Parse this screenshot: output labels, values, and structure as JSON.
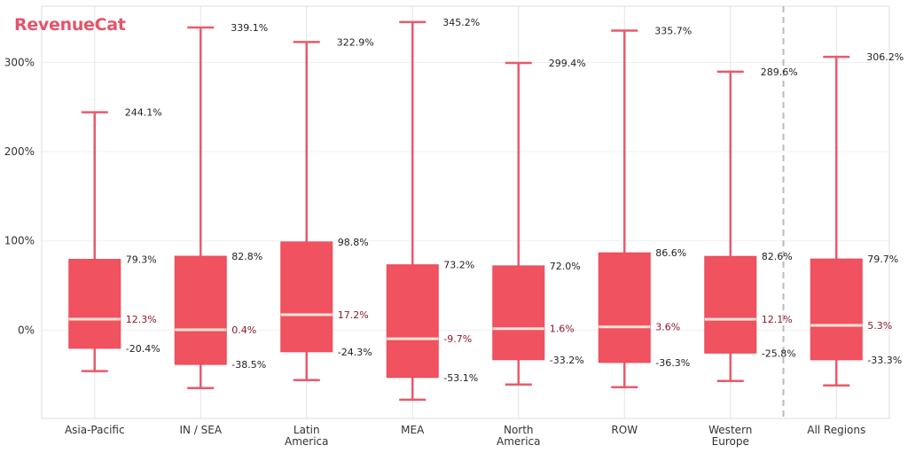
{
  "brand": {
    "logo_text": "RevenueCat",
    "logo_color": "#e5546a"
  },
  "colors": {
    "box_fill": "#f0525f",
    "whisker": "#e95a6c",
    "median_line": "#fbe6d8",
    "median_label": "#8b1a2b",
    "value_label": "#222222",
    "grid": "#efefef",
    "separator": "#bbbbbb"
  },
  "chart_data": {
    "type": "box",
    "title": "",
    "xlabel": "",
    "ylabel": "",
    "ylim": [
      -99,
      363
    ],
    "yticks": [
      0,
      100,
      200,
      300
    ],
    "ytick_labels": [
      "0%",
      "100%",
      "200%",
      "300%"
    ],
    "grid": true,
    "legend": "none",
    "separator_after_category": "Western Europe",
    "categories": [
      {
        "name": "Asia-Pacific",
        "label_lines": [
          "Asia-Pacific"
        ],
        "whisker_low": -46,
        "q1": -20.4,
        "median": 12.3,
        "q3": 79.3,
        "whisker_high": 244.1,
        "labels": {
          "whisker_high": "244.1%",
          "q3": "79.3%",
          "median": "12.3%",
          "q1": "-20.4%"
        }
      },
      {
        "name": "IN / SEA",
        "label_lines": [
          "IN / SEA"
        ],
        "whisker_low": -65,
        "q1": -38.5,
        "median": 0.4,
        "q3": 82.8,
        "whisker_high": 339.1,
        "labels": {
          "whisker_high": "339.1%",
          "q3": "82.8%",
          "median": "0.4%",
          "q1": "-38.5%"
        }
      },
      {
        "name": "Latin America",
        "label_lines": [
          "Latin",
          "America"
        ],
        "whisker_low": -56,
        "q1": -24.3,
        "median": 17.2,
        "q3": 98.8,
        "whisker_high": 322.9,
        "labels": {
          "whisker_high": "322.9%",
          "q3": "98.8%",
          "median": "17.2%",
          "q1": "-24.3%"
        }
      },
      {
        "name": "MEA",
        "label_lines": [
          "MEA"
        ],
        "whisker_low": -78,
        "q1": -53.1,
        "median": -9.7,
        "q3": 73.2,
        "whisker_high": 345.2,
        "labels": {
          "whisker_high": "345.2%",
          "q3": "73.2%",
          "median": "-9.7%",
          "q1": "-53.1%"
        }
      },
      {
        "name": "North America",
        "label_lines": [
          "North",
          "America"
        ],
        "whisker_low": -61,
        "q1": -33.2,
        "median": 1.6,
        "q3": 72.0,
        "whisker_high": 299.4,
        "labels": {
          "whisker_high": "299.4%",
          "q3": "72.0%",
          "median": "1.6%",
          "q1": "-33.2%"
        }
      },
      {
        "name": "ROW",
        "label_lines": [
          "ROW"
        ],
        "whisker_low": -64,
        "q1": -36.3,
        "median": 3.6,
        "q3": 86.6,
        "whisker_high": 335.7,
        "labels": {
          "whisker_high": "335.7%",
          "q3": "86.6%",
          "median": "3.6%",
          "q1": "-36.3%"
        }
      },
      {
        "name": "Western Europe",
        "label_lines": [
          "Western",
          "Europe"
        ],
        "whisker_low": -57,
        "q1": -25.8,
        "median": 12.1,
        "q3": 82.6,
        "whisker_high": 289.6,
        "labels": {
          "whisker_high": "289.6%",
          "q3": "82.6%",
          "median": "12.1%",
          "q1": "-25.8%"
        }
      },
      {
        "name": "All Regions",
        "label_lines": [
          "All Regions"
        ],
        "whisker_low": -62,
        "q1": -33.3,
        "median": 5.3,
        "q3": 79.7,
        "whisker_high": 306.2,
        "labels": {
          "whisker_high": "306.2%",
          "q3": "79.7%",
          "median": "5.3%",
          "q1": "-33.3%"
        }
      }
    ]
  }
}
